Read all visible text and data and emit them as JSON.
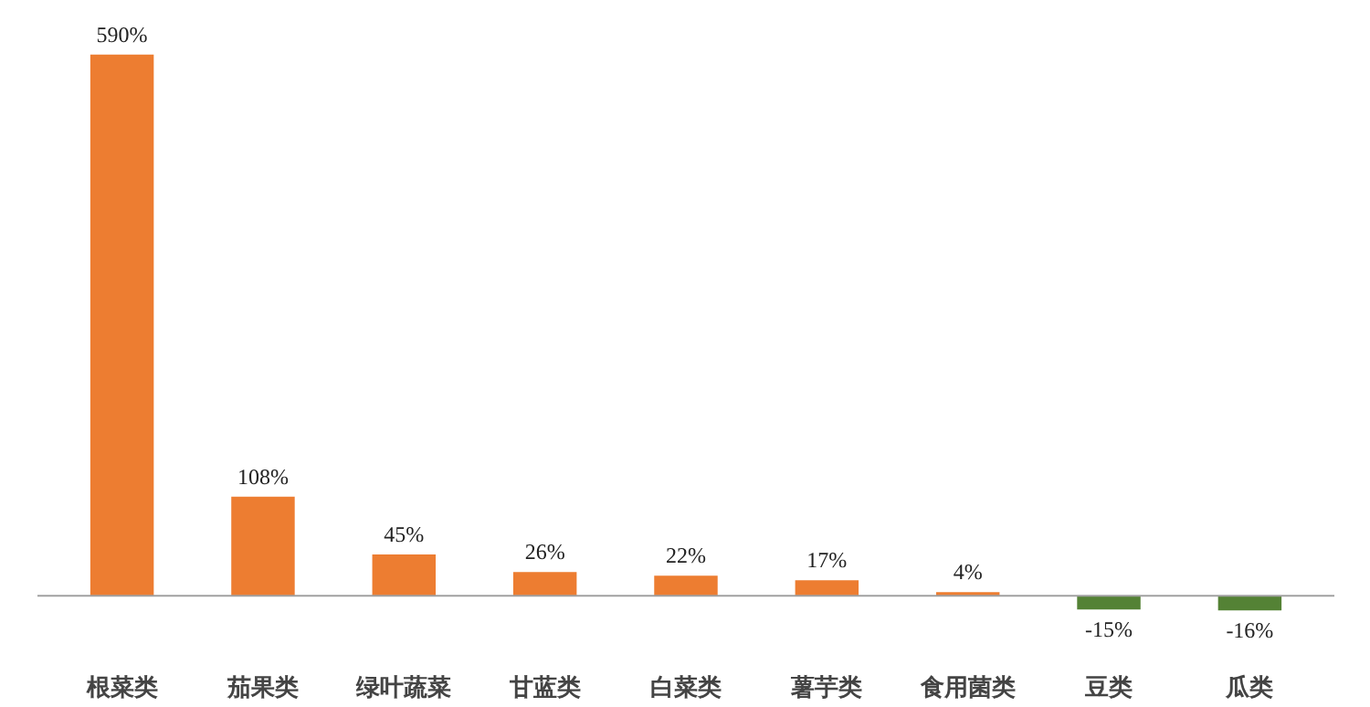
{
  "chart_data": {
    "type": "bar",
    "categories": [
      "根菜类",
      "茄果类",
      "绿叶蔬菜",
      "甘蓝类",
      "白菜类",
      "薯芋类",
      "食用菌类",
      "豆类",
      "瓜类"
    ],
    "values": [
      590,
      108,
      45,
      26,
      22,
      17,
      4,
      -15,
      -16
    ],
    "value_labels": [
      "590%",
      "108%",
      "45%",
      "26%",
      "22%",
      "17%",
      "4%",
      "-15%",
      "-16%"
    ],
    "colors": [
      "#ed7d31",
      "#ed7d31",
      "#ed7d31",
      "#ed7d31",
      "#ed7d31",
      "#ed7d31",
      "#ed7d31",
      "#548235",
      "#548235"
    ],
    "tick_labels": "x",
    "grid": false
  }
}
